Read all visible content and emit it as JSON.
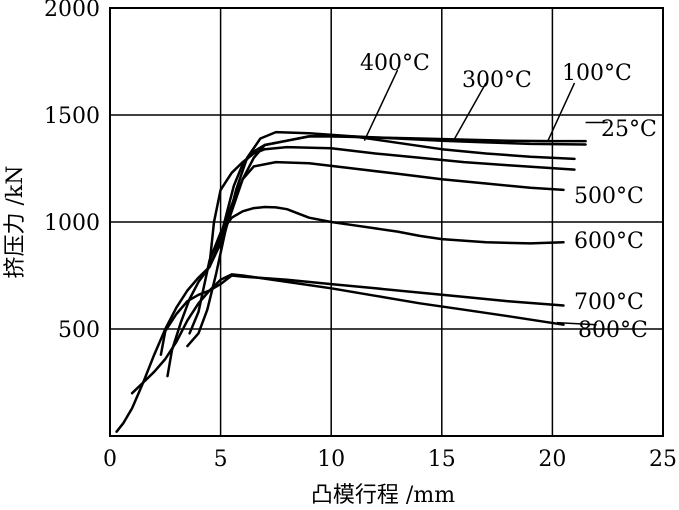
{
  "chart_data": {
    "type": "line",
    "title": "",
    "xlabel": "凸模行程 /mm",
    "ylabel": "挤压力 /kN",
    "xlim": [
      0,
      25
    ],
    "ylim": [
      0,
      2000
    ],
    "x_ticks": [
      0,
      5,
      10,
      15,
      20,
      25
    ],
    "y_ticks": [
      500,
      1000,
      1500,
      2000
    ],
    "x_tick_labels": [
      "0",
      "5",
      "10",
      "15",
      "20",
      "25"
    ],
    "y_tick_labels": [
      "500",
      "1000",
      "1500",
      "2000"
    ],
    "grid": true,
    "legend": "none (series labeled directly on plot)",
    "series": [
      {
        "name": "25°C",
        "points": [
          [
            0.3,
            20
          ],
          [
            0.6,
            60
          ],
          [
            1.0,
            130
          ],
          [
            1.5,
            250
          ],
          [
            2.0,
            380
          ],
          [
            2.5,
            500
          ],
          [
            3.0,
            600
          ],
          [
            3.5,
            680
          ],
          [
            4.0,
            740
          ],
          [
            4.5,
            790
          ],
          [
            4.7,
            840
          ],
          [
            5.0,
            930
          ],
          [
            5.3,
            1050
          ],
          [
            5.6,
            1170
          ],
          [
            6.0,
            1270
          ],
          [
            6.5,
            1330
          ],
          [
            7.0,
            1360
          ],
          [
            8.0,
            1380
          ],
          [
            9.0,
            1400
          ],
          [
            10.0,
            1400
          ],
          [
            12.0,
            1395
          ],
          [
            14.0,
            1390
          ],
          [
            16.0,
            1385
          ],
          [
            18.0,
            1380
          ],
          [
            20.0,
            1378
          ],
          [
            21.5,
            1378
          ]
        ]
      },
      {
        "name": "100°C",
        "points": [
          [
            2.6,
            280
          ],
          [
            2.8,
            400
          ],
          [
            3.2,
            530
          ],
          [
            3.6,
            640
          ],
          [
            4.0,
            720
          ],
          [
            4.5,
            790
          ],
          [
            5.0,
            900
          ],
          [
            5.5,
            1050
          ],
          [
            6.0,
            1200
          ],
          [
            6.5,
            1300
          ],
          [
            7.0,
            1360
          ],
          [
            8.0,
            1380
          ],
          [
            9.0,
            1400
          ],
          [
            11.0,
            1400
          ],
          [
            13.0,
            1390
          ],
          [
            15.0,
            1380
          ],
          [
            17.0,
            1372
          ],
          [
            19.0,
            1365
          ],
          [
            21.5,
            1362
          ]
        ]
      },
      {
        "name": "300°C",
        "points": [
          [
            3.5,
            420
          ],
          [
            4.0,
            480
          ],
          [
            4.4,
            590
          ],
          [
            4.8,
            760
          ],
          [
            5.2,
            950
          ],
          [
            5.7,
            1150
          ],
          [
            6.2,
            1300
          ],
          [
            6.8,
            1390
          ],
          [
            7.5,
            1420
          ],
          [
            9.0,
            1415
          ],
          [
            11.0,
            1400
          ],
          [
            13.0,
            1370
          ],
          [
            15.0,
            1340
          ],
          [
            17.0,
            1320
          ],
          [
            19.0,
            1305
          ],
          [
            21.0,
            1295
          ]
        ]
      },
      {
        "name": "400°C",
        "points": [
          [
            4.5,
            800
          ],
          [
            4.7,
            1000
          ],
          [
            5.0,
            1150
          ],
          [
            5.5,
            1230
          ],
          [
            6.0,
            1280
          ],
          [
            6.5,
            1320
          ],
          [
            7.0,
            1340
          ],
          [
            8.0,
            1350
          ],
          [
            10.0,
            1345
          ],
          [
            12.0,
            1320
          ],
          [
            14.0,
            1300
          ],
          [
            16.0,
            1280
          ],
          [
            18.0,
            1265
          ],
          [
            21.0,
            1245
          ]
        ]
      },
      {
        "name": "500°C",
        "points": [
          [
            5.0,
            930
          ],
          [
            5.5,
            1080
          ],
          [
            6.0,
            1200
          ],
          [
            6.5,
            1260
          ],
          [
            7.5,
            1280
          ],
          [
            9.0,
            1275
          ],
          [
            11.0,
            1250
          ],
          [
            13.0,
            1225
          ],
          [
            15.0,
            1200
          ],
          [
            17.0,
            1180
          ],
          [
            19.0,
            1160
          ],
          [
            20.5,
            1150
          ]
        ]
      },
      {
        "name": "600°C",
        "points": [
          [
            3.6,
            480
          ],
          [
            4.0,
            580
          ],
          [
            4.5,
            820
          ],
          [
            5.0,
            950
          ],
          [
            5.5,
            1020
          ],
          [
            6.0,
            1050
          ],
          [
            6.5,
            1065
          ],
          [
            7.0,
            1070
          ],
          [
            7.5,
            1068
          ],
          [
            8.0,
            1060
          ],
          [
            8.5,
            1040
          ],
          [
            9.0,
            1020
          ],
          [
            10.0,
            1000
          ],
          [
            11.0,
            985
          ],
          [
            12.0,
            970
          ],
          [
            13.0,
            955
          ],
          [
            14.0,
            935
          ],
          [
            15.0,
            920
          ],
          [
            17.0,
            905
          ],
          [
            19.0,
            900
          ],
          [
            20.5,
            905
          ]
        ]
      },
      {
        "name": "700°C",
        "points": [
          [
            2.3,
            380
          ],
          [
            2.5,
            490
          ],
          [
            3.0,
            570
          ],
          [
            3.5,
            630
          ],
          [
            4.0,
            660
          ],
          [
            4.5,
            680
          ],
          [
            5.0,
            710
          ],
          [
            5.5,
            750
          ],
          [
            6.0,
            745
          ],
          [
            8.0,
            730
          ],
          [
            10.0,
            710
          ],
          [
            12.0,
            690
          ],
          [
            14.0,
            670
          ],
          [
            16.0,
            650
          ],
          [
            18.0,
            630
          ],
          [
            20.5,
            610
          ]
        ]
      },
      {
        "name": "800°C",
        "points": [
          [
            1.0,
            200
          ],
          [
            1.5,
            250
          ],
          [
            2.0,
            300
          ],
          [
            2.5,
            360
          ],
          [
            3.0,
            440
          ],
          [
            3.5,
            540
          ],
          [
            4.0,
            620
          ],
          [
            4.5,
            680
          ],
          [
            5.0,
            730
          ],
          [
            5.5,
            755
          ],
          [
            6.0,
            750
          ],
          [
            8.0,
            720
          ],
          [
            10.0,
            690
          ],
          [
            12.0,
            655
          ],
          [
            14.0,
            620
          ],
          [
            16.0,
            590
          ],
          [
            18.0,
            560
          ],
          [
            20.5,
            520
          ]
        ]
      }
    ]
  },
  "labels": {
    "s400": "400°C",
    "s300": "300°C",
    "s100": "100°C",
    "s25": "25°C",
    "s500": "500°C",
    "s600": "600°C",
    "s700": "700°C",
    "s800": "800°C"
  },
  "colors": {
    "line": "#000000",
    "grid": "#000000",
    "background": "#ffffff"
  }
}
